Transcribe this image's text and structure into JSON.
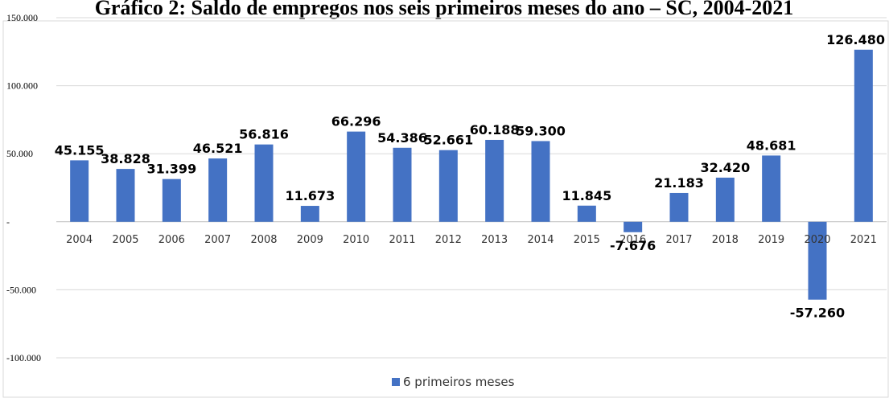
{
  "chart_data": {
    "type": "bar",
    "title": "Gráfico 2: Saldo de empregos nos seis primeiros meses do ano – SC, 2004-2021",
    "categories": [
      "2004",
      "2005",
      "2006",
      "2007",
      "2008",
      "2009",
      "2010",
      "2011",
      "2012",
      "2013",
      "2014",
      "2015",
      "2016",
      "2017",
      "2018",
      "2019",
      "2020",
      "2021"
    ],
    "series": [
      {
        "name": "6 primeiros meses",
        "values": [
          45155,
          38828,
          31399,
          46521,
          56816,
          11673,
          66296,
          54386,
          52661,
          60188,
          59300,
          11845,
          -7676,
          21183,
          32420,
          48681,
          -57260,
          126480
        ],
        "labels": [
          "45.155",
          "38.828",
          "31.399",
          "46.521",
          "56.816",
          "11.673",
          "66.296",
          "54.386",
          "52.661",
          "60.188",
          "59.300",
          "11.845",
          "-7.676",
          "21.183",
          "32.420",
          "48.681",
          "-57.260",
          "126.480"
        ]
      }
    ],
    "ylim": [
      -100000,
      150000
    ],
    "yticks": [
      150000,
      100000,
      50000,
      0,
      -50000,
      -100000
    ],
    "ytick_labels": [
      "150.000",
      "100.000",
      "50.000",
      "-",
      "-50.000",
      "-100.000"
    ],
    "grid": true,
    "legend_position": "bottom",
    "xlabel": "",
    "ylabel": "",
    "colors": {
      "bar": "#4472C4",
      "grid": "#d9d9d9",
      "axis": "#bfbfbf"
    }
  }
}
